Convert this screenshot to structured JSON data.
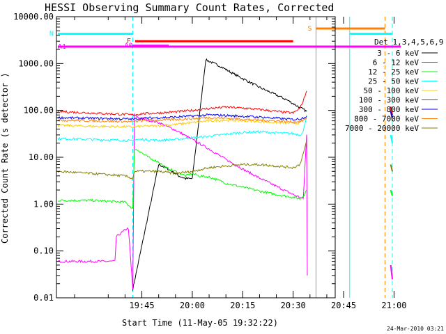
{
  "chart_data": {
    "type": "line",
    "title": "HESSI Observing Summary Count Rates, Corrected",
    "xlabel": "Start Time (11-May-05 19:32:22)",
    "ylabel": "Corrected Count Rate (s-1 detector-1)",
    "ylabel_visible": "Corrected Count Rate (s  detector  )",
    "y_scale": "log",
    "ylim": [
      0.01,
      10000
    ],
    "xlim_minutes": [
      19.6,
      102.5
    ],
    "y_ticks": [
      {
        "value": 10000,
        "label": "10000.00"
      },
      {
        "value": 1000,
        "label": "1000.00"
      },
      {
        "value": 100,
        "label": "100.00"
      },
      {
        "value": 10,
        "label": "10.00"
      },
      {
        "value": 1,
        "label": "1.00"
      },
      {
        "value": 0.1,
        "label": "0.10"
      },
      {
        "value": 0.01,
        "label": "0.01"
      }
    ],
    "x_ticks": [
      {
        "minute": 45,
        "label": "19:45"
      },
      {
        "minute": 60,
        "label": "20:00"
      },
      {
        "minute": 75,
        "label": "20:15"
      },
      {
        "minute": 90,
        "label": "20:30"
      },
      {
        "minute": 105,
        "label": "20:45"
      },
      {
        "minute": 120,
        "label": "21:00"
      }
    ],
    "legend_title": "Det 1,3,4,5,6,9",
    "legend_placement": "right",
    "series": [
      {
        "name": "3 - 6 keV",
        "color": "#000000",
        "x": [
          42.3,
          50,
          52,
          54,
          56,
          58,
          60,
          64,
          68,
          72,
          76,
          80,
          84,
          88,
          90,
          92,
          93.5,
          94
        ],
        "y": [
          0.015,
          7,
          6,
          5,
          4,
          3.5,
          3.5,
          1200,
          900,
          620,
          440,
          310,
          230,
          170,
          140,
          115,
          100,
          95
        ]
      },
      {
        "name": "6 - 12 keV",
        "color": "#ff00ff",
        "x": [
          20,
          37,
          37.4,
          40.5,
          41,
          42.3,
          42.8,
          44,
          50,
          55,
          60,
          65,
          70,
          75,
          80,
          85,
          90,
          93,
          94,
          94.2
        ],
        "y": [
          0.06,
          0.06,
          0.2,
          0.3,
          0.3,
          0.015,
          80,
          70,
          55,
          38,
          24,
          15,
          9,
          5.6,
          3.6,
          2.4,
          1.6,
          1.3,
          30,
          0.03
        ]
      },
      {
        "name": "12 - 25 keV",
        "color": "#00ff00",
        "x": [
          20,
          30,
          40,
          42.3,
          42.8,
          44,
          46,
          48,
          50,
          52,
          55,
          58,
          60,
          62,
          65,
          68,
          70,
          75,
          80,
          85,
          90,
          92,
          93,
          94
        ],
        "y": [
          1.2,
          1.2,
          1.1,
          0.8,
          15,
          14,
          11,
          9,
          8,
          6,
          5,
          4,
          4.5,
          4,
          3.8,
          3.2,
          2.8,
          2.3,
          1.9,
          1.6,
          1.4,
          1.3,
          1.5,
          2
        ]
      },
      {
        "name": "25 - 50 keV",
        "color": "#00ffff",
        "x": [
          20,
          30,
          40,
          42.3,
          42.8,
          45,
          50,
          55,
          60,
          65,
          70,
          75,
          80,
          85,
          90,
          92,
          93,
          94
        ],
        "y": [
          25,
          24,
          23,
          22,
          24,
          24,
          23,
          24,
          26,
          28,
          31,
          34,
          35,
          33,
          32,
          30,
          35,
          80
        ]
      },
      {
        "name": "50 - 100 keV",
        "color": "#ffcc00",
        "x": [
          20,
          30,
          40,
          42.3,
          45,
          50,
          55,
          60,
          65,
          70,
          75,
          80,
          85,
          90,
          92,
          94
        ],
        "y": [
          48,
          46,
          45,
          44,
          46,
          47,
          50,
          55,
          60,
          62,
          60,
          58,
          55,
          53,
          54,
          70
        ]
      },
      {
        "name": "100 - 300 keV",
        "color": "#ff0000",
        "x": [
          20,
          30,
          40,
          42.3,
          45,
          50,
          55,
          60,
          65,
          70,
          75,
          80,
          85,
          90,
          92,
          93,
          94
        ],
        "y": [
          95,
          88,
          82,
          80,
          85,
          88,
          93,
          100,
          110,
          118,
          112,
          105,
          95,
          88,
          110,
          160,
          260
        ]
      },
      {
        "name": "300 - 800 keV",
        "color": "#0000ff",
        "x": [
          20,
          30,
          40,
          42.3,
          45,
          50,
          55,
          60,
          65,
          70,
          75,
          80,
          85,
          90,
          92,
          94
        ],
        "y": [
          70,
          68,
          66,
          65,
          68,
          70,
          72,
          76,
          80,
          78,
          75,
          72,
          68,
          64,
          66,
          75
        ]
      },
      {
        "name": "800 - 7000 keV",
        "color": "#ff8000",
        "x": [
          20,
          30,
          40,
          42.3,
          45,
          50,
          55,
          60,
          65,
          70,
          75,
          80,
          85,
          90,
          92,
          94
        ],
        "y": [
          62,
          60,
          58,
          57,
          60,
          62,
          64,
          67,
          70,
          68,
          65,
          62,
          60,
          57,
          58,
          65
        ]
      },
      {
        "name": "7000 - 20000 keV",
        "color": "#808000",
        "x": [
          20,
          30,
          40,
          42.3,
          42.8,
          45,
          50,
          55,
          60,
          65,
          70,
          75,
          80,
          85,
          90,
          92,
          93,
          94
        ],
        "y": [
          5,
          4.5,
          4,
          3.5,
          5,
          5,
          5,
          4.5,
          5,
          6,
          6.5,
          7,
          7,
          6.5,
          6,
          7,
          12,
          22
        ]
      }
    ],
    "tail_segments": [
      {
        "color": "#ff0000",
        "x": [
          119,
          119.5
        ],
        "y": [
          120,
          80
        ]
      },
      {
        "color": "#ff8000",
        "x": [
          119,
          119.5
        ],
        "y": [
          100,
          60
        ]
      },
      {
        "color": "#0000ff",
        "x": [
          119,
          119.5
        ],
        "y": [
          95,
          70
        ]
      },
      {
        "color": "#808000",
        "x": [
          119,
          119.5
        ],
        "y": [
          7,
          5
        ]
      },
      {
        "color": "#00ff00",
        "x": [
          119,
          119.5
        ],
        "y": [
          2,
          1.5
        ]
      },
      {
        "color": "#ff00ff",
        "x": [
          119,
          119.5
        ],
        "y": [
          0.05,
          0.025
        ]
      },
      {
        "color": "#00ffff",
        "x": [
          119,
          119.5
        ],
        "y": [
          30,
          20
        ]
      }
    ],
    "vertical_lines": [
      {
        "minute": 42.3,
        "color": "#00ffff",
        "style": "dashed"
      },
      {
        "minute": 96.8,
        "color": "#ff8000",
        "style": "solid"
      },
      {
        "minute": 106.8,
        "color": "#00ffff",
        "style": "solid"
      },
      {
        "minute": 117.3,
        "color": "#ff8000",
        "style": "dashed"
      },
      {
        "minute": 119.5,
        "color": "#00ffff",
        "style": "dashed"
      }
    ],
    "flag_bars": [
      {
        "label": "N",
        "color": "#00ffff",
        "segments": [
          [
            20,
            42.3
          ],
          [
            106.8,
            119.5
          ]
        ],
        "y": 4300
      },
      {
        "label": "S",
        "color": "#ff8000",
        "segments": [
          [
            96.8,
            117.3
          ]
        ],
        "y": 5600
      },
      {
        "label": "F",
        "color": "#ff0000",
        "segments": [
          [
            43,
            90
          ]
        ],
        "y": 3000
      },
      {
        "label": "A0",
        "color": "#ff00ff",
        "segments": [
          [
            42.3,
            53
          ]
        ],
        "y": 2400
      },
      {
        "label": "A1",
        "color": "#ff00ff",
        "segments": [
          [
            20,
            122
          ]
        ],
        "y": 2300
      }
    ],
    "timestamp": "24-Mar-2010 03:21"
  }
}
